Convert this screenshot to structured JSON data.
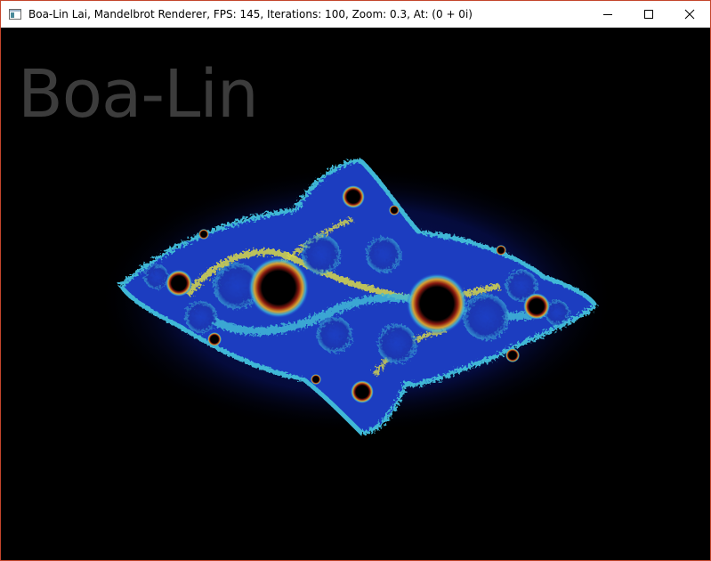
{
  "window": {
    "title": "Boa-Lin Lai, Mandelbrot Renderer, FPS: 145, Iterations: 100, Zoom: 0.3, At: (0 + 0i)",
    "icon": "app-window-icon",
    "controls": [
      "minimize-icon",
      "maximize-icon",
      "close-icon"
    ]
  },
  "canvas": {
    "watermark": "Boa-Lin",
    "colors": {
      "background": "#000000",
      "watermark": "#3c3c3c",
      "deep_blue": "#0a1a8a",
      "blue": "#1f4fd8",
      "cyan": "#3fb8d6",
      "yellow": "#d8d84a",
      "red": "#c8321e",
      "halo": "#06104a"
    }
  }
}
